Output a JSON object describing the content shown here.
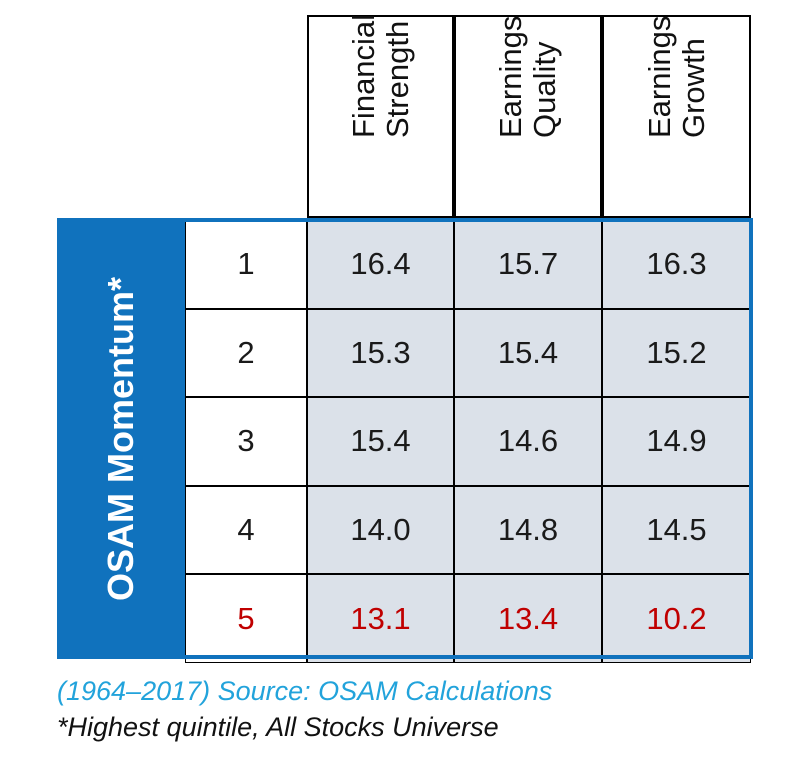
{
  "chart_data": {
    "type": "table",
    "row_header": "OSAM Momentum*",
    "columns": [
      {
        "line1": "Financial",
        "line2": "Strength"
      },
      {
        "line1": "Earnings",
        "line2": "Quality"
      },
      {
        "line1": "Earnings",
        "line2": "Growth"
      }
    ],
    "rows": [
      {
        "rank": "1",
        "values": [
          "16.4",
          "15.7",
          "16.3"
        ],
        "highlight": false
      },
      {
        "rank": "2",
        "values": [
          "15.3",
          "15.4",
          "15.2"
        ],
        "highlight": false
      },
      {
        "rank": "3",
        "values": [
          "15.4",
          "14.6",
          "14.9"
        ],
        "highlight": false
      },
      {
        "rank": "4",
        "values": [
          "14.0",
          "14.8",
          "14.5"
        ],
        "highlight": false
      },
      {
        "rank": "5",
        "values": [
          "13.1",
          "13.4",
          "10.2"
        ],
        "highlight": true
      }
    ]
  },
  "notes": {
    "source": "(1964–2017) Source: OSAM Calculations",
    "footnote": "*Highest quintile, All Stocks Universe"
  },
  "colors": {
    "accent_blue": "#1072bd",
    "cell_fill": "#dbe1e9",
    "highlight_red": "#c00000",
    "source_text": "#22a3db"
  }
}
